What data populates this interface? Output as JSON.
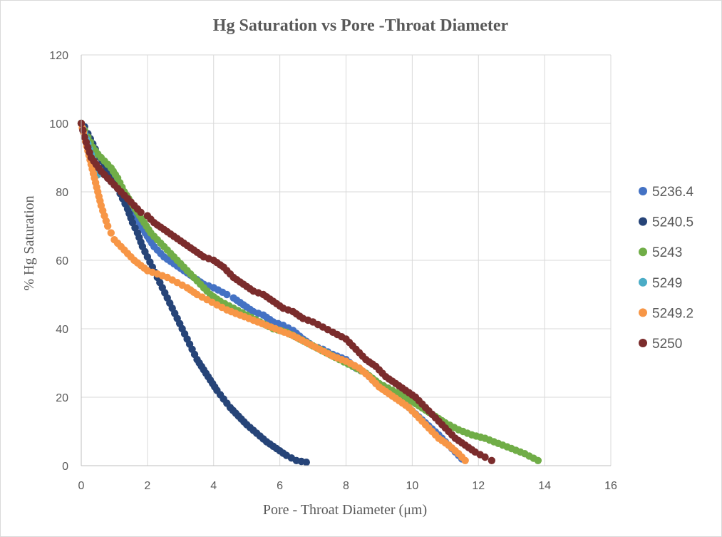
{
  "chart_data": {
    "type": "scatter",
    "title": "Hg Saturation vs Pore -Throat  Diameter",
    "xlabel": "Pore - Throat Diameter (μm)",
    "ylabel": "% Hg Saturation",
    "xlim": [
      0,
      16
    ],
    "ylim": [
      0,
      120
    ],
    "xticks": [
      0,
      2,
      4,
      6,
      8,
      10,
      12,
      14,
      16
    ],
    "yticks": [
      0,
      20,
      40,
      60,
      80,
      100,
      120
    ],
    "grid": true,
    "legend_position": "right",
    "series": [
      {
        "name": "5236.4",
        "color": "#4472c4",
        "points": [
          [
            0.0,
            100
          ],
          [
            0.05,
            98
          ],
          [
            0.1,
            96
          ],
          [
            0.2,
            93
          ],
          [
            0.3,
            90
          ],
          [
            0.45,
            88
          ],
          [
            0.6,
            86
          ],
          [
            0.8,
            84
          ],
          [
            1.0,
            82
          ],
          [
            1.2,
            80
          ],
          [
            1.4,
            78
          ],
          [
            1.6,
            75
          ],
          [
            1.8,
            70
          ],
          [
            2.0,
            67
          ],
          [
            2.2,
            64
          ],
          [
            2.5,
            61
          ],
          [
            2.8,
            59
          ],
          [
            3.1,
            57
          ],
          [
            3.4,
            55
          ],
          [
            3.7,
            53
          ],
          [
            4.0,
            52
          ],
          [
            4.4,
            50
          ],
          [
            4.6,
            49
          ],
          [
            4.9,
            47
          ],
          [
            5.2,
            45
          ],
          [
            5.5,
            44
          ],
          [
            5.8,
            42
          ],
          [
            6.1,
            41
          ],
          [
            6.4,
            39.5
          ],
          [
            6.7,
            37
          ],
          [
            7.0,
            35
          ],
          [
            7.3,
            34
          ],
          [
            7.6,
            32.5
          ],
          [
            8.0,
            31
          ],
          [
            8.3,
            28.5
          ],
          [
            8.6,
            27
          ],
          [
            8.9,
            24
          ],
          [
            9.2,
            22
          ],
          [
            9.6,
            20
          ],
          [
            10.0,
            16
          ],
          [
            10.4,
            12.5
          ],
          [
            10.8,
            9
          ],
          [
            11.2,
            5
          ],
          [
            11.5,
            2
          ]
        ]
      },
      {
        "name": "5240.5",
        "color": "#264478",
        "points": [
          [
            0.0,
            100
          ],
          [
            0.1,
            99
          ],
          [
            0.2,
            97
          ],
          [
            0.35,
            94
          ],
          [
            0.5,
            91
          ],
          [
            0.7,
            88
          ],
          [
            0.9,
            85
          ],
          [
            1.1,
            81
          ],
          [
            1.25,
            78
          ],
          [
            1.4,
            75
          ],
          [
            1.55,
            71
          ],
          [
            1.7,
            68
          ],
          [
            1.85,
            64
          ],
          [
            2.0,
            61
          ],
          [
            2.15,
            58
          ],
          [
            2.3,
            55
          ],
          [
            2.45,
            52
          ],
          [
            2.6,
            49
          ],
          [
            2.75,
            46
          ],
          [
            2.9,
            43
          ],
          [
            3.05,
            40
          ],
          [
            3.2,
            37
          ],
          [
            3.35,
            34
          ],
          [
            3.5,
            31
          ],
          [
            3.7,
            28
          ],
          [
            3.9,
            25
          ],
          [
            4.1,
            22
          ],
          [
            4.3,
            19.5
          ],
          [
            4.5,
            17
          ],
          [
            4.75,
            14.5
          ],
          [
            5.0,
            12
          ],
          [
            5.3,
            9.5
          ],
          [
            5.6,
            7
          ],
          [
            5.9,
            5
          ],
          [
            6.2,
            3
          ],
          [
            6.5,
            1.5
          ],
          [
            6.8,
            1
          ]
        ]
      },
      {
        "name": "5243",
        "color": "#70ad47",
        "points": [
          [
            0.0,
            100
          ],
          [
            0.1,
            98
          ],
          [
            0.2,
            96
          ],
          [
            0.35,
            93
          ],
          [
            0.5,
            91
          ],
          [
            0.7,
            89
          ],
          [
            0.9,
            87
          ],
          [
            1.1,
            84
          ],
          [
            1.3,
            80
          ],
          [
            1.5,
            77
          ],
          [
            1.7,
            74
          ],
          [
            1.9,
            71
          ],
          [
            2.1,
            68
          ],
          [
            2.4,
            65
          ],
          [
            2.7,
            62
          ],
          [
            3.0,
            59
          ],
          [
            3.3,
            56
          ],
          [
            3.6,
            53
          ],
          [
            3.9,
            50
          ],
          [
            4.2,
            48
          ],
          [
            4.6,
            46
          ],
          [
            5.0,
            44
          ],
          [
            5.4,
            42
          ],
          [
            5.8,
            40
          ],
          [
            6.2,
            39
          ],
          [
            6.6,
            37
          ],
          [
            7.0,
            35
          ],
          [
            7.4,
            33
          ],
          [
            7.8,
            31
          ],
          [
            8.2,
            29
          ],
          [
            8.6,
            27
          ],
          [
            9.0,
            24
          ],
          [
            9.4,
            22
          ],
          [
            9.8,
            20
          ],
          [
            10.2,
            17.5
          ],
          [
            10.6,
            15
          ],
          [
            11.0,
            12.5
          ],
          [
            11.4,
            10.5
          ],
          [
            11.8,
            9
          ],
          [
            12.2,
            8
          ],
          [
            12.6,
            6.5
          ],
          [
            13.0,
            5
          ],
          [
            13.4,
            3.5
          ],
          [
            13.8,
            1.5
          ]
        ]
      },
      {
        "name": "5249",
        "color": "#4bacc6",
        "points": [
          [
            0.0,
            100
          ],
          [
            0.1,
            97
          ],
          [
            0.2,
            94
          ],
          [
            0.3,
            91
          ],
          [
            0.4,
            88
          ],
          [
            0.5,
            85
          ]
        ]
      },
      {
        "name": "5249.2",
        "color": "#f79646",
        "points": [
          [
            0.0,
            100
          ],
          [
            0.1,
            96
          ],
          [
            0.2,
            92
          ],
          [
            0.3,
            88
          ],
          [
            0.4,
            84
          ],
          [
            0.5,
            80
          ],
          [
            0.6,
            76
          ],
          [
            0.7,
            73
          ],
          [
            0.8,
            70
          ],
          [
            0.9,
            68
          ],
          [
            1.0,
            66
          ],
          [
            1.2,
            64
          ],
          [
            1.4,
            62
          ],
          [
            1.6,
            60
          ],
          [
            1.8,
            58.5
          ],
          [
            2.0,
            57
          ],
          [
            2.3,
            56
          ],
          [
            2.6,
            55
          ],
          [
            2.9,
            53.5
          ],
          [
            3.2,
            52
          ],
          [
            3.5,
            50
          ],
          [
            3.8,
            48.5
          ],
          [
            4.1,
            47
          ],
          [
            4.4,
            45.5
          ],
          [
            4.8,
            44
          ],
          [
            5.2,
            42.5
          ],
          [
            5.6,
            41
          ],
          [
            6.0,
            39.5
          ],
          [
            6.4,
            38
          ],
          [
            6.8,
            36
          ],
          [
            7.2,
            34
          ],
          [
            7.6,
            32
          ],
          [
            8.0,
            30.5
          ],
          [
            8.4,
            28.5
          ],
          [
            8.7,
            26
          ],
          [
            9.0,
            23
          ],
          [
            9.3,
            21
          ],
          [
            9.6,
            19
          ],
          [
            9.9,
            17
          ],
          [
            10.2,
            14
          ],
          [
            10.5,
            11
          ],
          [
            10.8,
            8
          ],
          [
            11.1,
            6
          ],
          [
            11.4,
            3.5
          ],
          [
            11.6,
            1.5
          ]
        ]
      },
      {
        "name": "5250",
        "color": "#7b2c2c",
        "points": [
          [
            0.0,
            100
          ],
          [
            0.05,
            98
          ],
          [
            0.1,
            96
          ],
          [
            0.2,
            93
          ],
          [
            0.3,
            90
          ],
          [
            0.45,
            88
          ],
          [
            0.6,
            86
          ],
          [
            0.8,
            84
          ],
          [
            1.0,
            82
          ],
          [
            1.2,
            80
          ],
          [
            1.4,
            78
          ],
          [
            1.6,
            76
          ],
          [
            1.8,
            74
          ],
          [
            2.0,
            73
          ],
          [
            2.2,
            71
          ],
          [
            2.5,
            69
          ],
          [
            2.8,
            67
          ],
          [
            3.1,
            65
          ],
          [
            3.4,
            63
          ],
          [
            3.7,
            61
          ],
          [
            4.0,
            60
          ],
          [
            4.3,
            58
          ],
          [
            4.6,
            55
          ],
          [
            4.9,
            53
          ],
          [
            5.2,
            51
          ],
          [
            5.5,
            50
          ],
          [
            5.8,
            48
          ],
          [
            6.1,
            46
          ],
          [
            6.4,
            45
          ],
          [
            6.7,
            43
          ],
          [
            7.0,
            42
          ],
          [
            7.3,
            40.5
          ],
          [
            7.6,
            39
          ],
          [
            8.0,
            37
          ],
          [
            8.3,
            34
          ],
          [
            8.6,
            31
          ],
          [
            8.9,
            29
          ],
          [
            9.2,
            26
          ],
          [
            9.5,
            24
          ],
          [
            9.8,
            22
          ],
          [
            10.1,
            20
          ],
          [
            10.4,
            17
          ],
          [
            10.7,
            14
          ],
          [
            11.0,
            11
          ],
          [
            11.3,
            8
          ],
          [
            11.6,
            6
          ],
          [
            11.9,
            4
          ],
          [
            12.2,
            2.5
          ],
          [
            12.4,
            1.5
          ]
        ]
      }
    ]
  }
}
